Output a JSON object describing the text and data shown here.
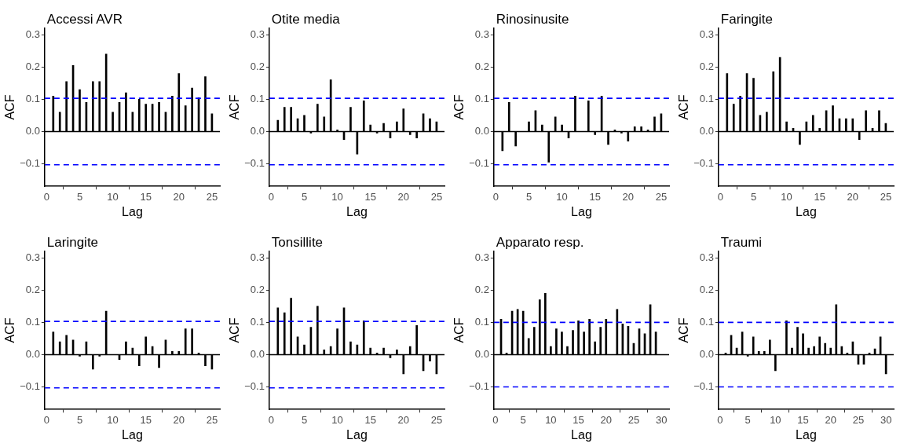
{
  "chart_data": [
    {
      "type": "bar",
      "title": "Accessi AVR",
      "xlabel": "Lag",
      "ylabel": "ACF",
      "color": "#000000",
      "x": [
        1,
        2,
        3,
        4,
        5,
        6,
        7,
        8,
        9,
        10,
        11,
        12,
        13,
        14,
        15,
        16,
        17,
        18,
        19,
        20,
        21,
        22,
        23,
        24,
        25
      ],
      "values": [
        0.11,
        0.06,
        0.155,
        0.205,
        0.13,
        0.09,
        0.155,
        0.155,
        0.24,
        0.06,
        0.09,
        0.12,
        0.06,
        0.1,
        0.085,
        0.085,
        0.09,
        0.06,
        0.11,
        0.18,
        0.08,
        0.135,
        0.105,
        0.17,
        0.055
      ],
      "xlim": [
        -0.3,
        26.2
      ],
      "xticks": [
        0,
        5,
        10,
        15,
        20,
        25
      ],
      "ylim": [
        -0.17,
        0.32
      ],
      "yticks": [
        {
          "value": -0.1,
          "label": "−0.1"
        },
        {
          "value": 0,
          "label": "0.0"
        },
        {
          "value": 0.1,
          "label": "0.1"
        },
        {
          "value": 0.2,
          "label": "0.2"
        },
        {
          "value": 0.3,
          "label": "0.3"
        }
      ],
      "ref_lines": [
        {
          "axis": "y",
          "value": 0,
          "color": "#000000",
          "line_style": "solid"
        },
        {
          "axis": "y",
          "value": 0.103,
          "color": "#0000ff",
          "line_style": "dashed"
        },
        {
          "axis": "y",
          "value": -0.103,
          "color": "#0000ff",
          "line_style": "dashed"
        }
      ]
    },
    {
      "type": "bar",
      "title": "Otite media",
      "xlabel": "Lag",
      "ylabel": "ACF",
      "color": "#000000",
      "x": [
        1,
        2,
        3,
        4,
        5,
        6,
        7,
        8,
        9,
        10,
        11,
        12,
        13,
        14,
        15,
        16,
        17,
        18,
        19,
        20,
        21,
        22,
        23,
        24,
        25
      ],
      "values": [
        0.035,
        0.075,
        0.075,
        0.04,
        0.05,
        -0.005,
        0.085,
        0.045,
        0.16,
        0.005,
        -0.025,
        0.075,
        -0.07,
        0.095,
        0.02,
        -0.005,
        0.025,
        -0.02,
        0.03,
        0.07,
        -0.01,
        -0.02,
        0.055,
        0.04,
        0.03
      ],
      "xlim": [
        -0.3,
        26.2
      ],
      "xticks": [
        0,
        5,
        10,
        15,
        20,
        25
      ],
      "ylim": [
        -0.17,
        0.32
      ],
      "yticks": [
        {
          "value": -0.1,
          "label": "−0.1"
        },
        {
          "value": 0,
          "label": "0.0"
        },
        {
          "value": 0.1,
          "label": "0.1"
        },
        {
          "value": 0.2,
          "label": "0.2"
        },
        {
          "value": 0.3,
          "label": "0.3"
        }
      ],
      "ref_lines": [
        {
          "axis": "y",
          "value": 0,
          "color": "#000000",
          "line_style": "solid"
        },
        {
          "axis": "y",
          "value": 0.103,
          "color": "#0000ff",
          "line_style": "dashed"
        },
        {
          "axis": "y",
          "value": -0.103,
          "color": "#0000ff",
          "line_style": "dashed"
        }
      ]
    },
    {
      "type": "bar",
      "title": "Rinosinusite",
      "xlabel": "Lag",
      "ylabel": "ACF",
      "color": "#000000",
      "x": [
        1,
        2,
        3,
        4,
        5,
        6,
        7,
        8,
        9,
        10,
        11,
        12,
        13,
        14,
        15,
        16,
        17,
        18,
        19,
        20,
        21,
        22,
        23,
        24,
        25
      ],
      "values": [
        -0.06,
        0.09,
        -0.045,
        0,
        0.03,
        0.065,
        0.02,
        -0.095,
        0.045,
        0.02,
        -0.02,
        0.11,
        0,
        0.095,
        -0.01,
        0.11,
        -0.04,
        0.005,
        -0.005,
        -0.03,
        0.015,
        0.015,
        0.005,
        0.045,
        0.055
      ],
      "xlim": [
        -0.3,
        26.2
      ],
      "xticks": [
        0,
        5,
        10,
        15,
        20,
        25
      ],
      "ylim": [
        -0.17,
        0.32
      ],
      "yticks": [
        {
          "value": -0.1,
          "label": "−0.1"
        },
        {
          "value": 0,
          "label": "0.0"
        },
        {
          "value": 0.1,
          "label": "0.1"
        },
        {
          "value": 0.2,
          "label": "0.2"
        },
        {
          "value": 0.3,
          "label": "0.3"
        }
      ],
      "ref_lines": [
        {
          "axis": "y",
          "value": 0,
          "color": "#000000",
          "line_style": "solid"
        },
        {
          "axis": "y",
          "value": 0.103,
          "color": "#0000ff",
          "line_style": "dashed"
        },
        {
          "axis": "y",
          "value": -0.103,
          "color": "#0000ff",
          "line_style": "dashed"
        }
      ]
    },
    {
      "type": "bar",
      "title": "Faringite",
      "xlabel": "Lag",
      "ylabel": "ACF",
      "color": "#000000",
      "x": [
        1,
        2,
        3,
        4,
        5,
        6,
        7,
        8,
        9,
        10,
        11,
        12,
        13,
        14,
        15,
        16,
        17,
        18,
        19,
        20,
        21,
        22,
        23,
        24,
        25
      ],
      "values": [
        0.18,
        0.085,
        0.11,
        0.18,
        0.165,
        0.05,
        0.06,
        0.185,
        0.23,
        0.03,
        0.01,
        -0.04,
        0.03,
        0.05,
        0.01,
        0.065,
        0.08,
        0.04,
        0.04,
        0.04,
        -0.025,
        0.065,
        0.01,
        0.065,
        0.025
      ],
      "xlim": [
        -0.3,
        26.2
      ],
      "xticks": [
        0,
        5,
        10,
        15,
        20,
        25
      ],
      "ylim": [
        -0.17,
        0.32
      ],
      "yticks": [
        {
          "value": -0.1,
          "label": "−0.1"
        },
        {
          "value": 0,
          "label": "0.0"
        },
        {
          "value": 0.1,
          "label": "0.1"
        },
        {
          "value": 0.2,
          "label": "0.2"
        },
        {
          "value": 0.3,
          "label": "0.3"
        }
      ],
      "ref_lines": [
        {
          "axis": "y",
          "value": 0,
          "color": "#000000",
          "line_style": "solid"
        },
        {
          "axis": "y",
          "value": 0.103,
          "color": "#0000ff",
          "line_style": "dashed"
        },
        {
          "axis": "y",
          "value": -0.103,
          "color": "#0000ff",
          "line_style": "dashed"
        }
      ]
    },
    {
      "type": "bar",
      "title": "Laringite",
      "xlabel": "Lag",
      "ylabel": "ACF",
      "color": "#000000",
      "x": [
        1,
        2,
        3,
        4,
        5,
        6,
        7,
        8,
        9,
        10,
        11,
        12,
        13,
        14,
        15,
        16,
        17,
        18,
        19,
        20,
        21,
        22,
        23,
        24,
        25
      ],
      "values": [
        0.07,
        0.04,
        0.06,
        0.045,
        -0.005,
        0.04,
        -0.045,
        -0.005,
        0.135,
        0,
        -0.015,
        0.04,
        0.02,
        -0.035,
        0.055,
        0.025,
        -0.04,
        0.045,
        0.01,
        0.01,
        0.08,
        0.08,
        0.005,
        -0.035,
        -0.045
      ],
      "xlim": [
        -0.3,
        26.2
      ],
      "xticks": [
        0,
        5,
        10,
        15,
        20,
        25
      ],
      "ylim": [
        -0.17,
        0.32
      ],
      "yticks": [
        {
          "value": -0.1,
          "label": "−0.1"
        },
        {
          "value": 0,
          "label": "0.0"
        },
        {
          "value": 0.1,
          "label": "0.1"
        },
        {
          "value": 0.2,
          "label": "0.2"
        },
        {
          "value": 0.3,
          "label": "0.3"
        }
      ],
      "ref_lines": [
        {
          "axis": "y",
          "value": 0,
          "color": "#000000",
          "line_style": "solid"
        },
        {
          "axis": "y",
          "value": 0.103,
          "color": "#0000ff",
          "line_style": "dashed"
        },
        {
          "axis": "y",
          "value": -0.103,
          "color": "#0000ff",
          "line_style": "dashed"
        }
      ]
    },
    {
      "type": "bar",
      "title": "Tonsillite",
      "xlabel": "Lag",
      "ylabel": "ACF",
      "color": "#000000",
      "x": [
        1,
        2,
        3,
        4,
        5,
        6,
        7,
        8,
        9,
        10,
        11,
        12,
        13,
        14,
        15,
        16,
        17,
        18,
        19,
        20,
        21,
        22,
        23,
        24,
        25
      ],
      "values": [
        0.145,
        0.13,
        0.175,
        0.055,
        0.03,
        0.085,
        0.15,
        0.015,
        0.025,
        0.08,
        0.145,
        0.04,
        0.03,
        0.105,
        0.02,
        0.005,
        0.02,
        -0.01,
        0.015,
        -0.06,
        0.025,
        0.09,
        -0.05,
        -0.02,
        -0.06
      ],
      "xlim": [
        -0.3,
        26.2
      ],
      "xticks": [
        0,
        5,
        10,
        15,
        20,
        25
      ],
      "ylim": [
        -0.17,
        0.32
      ],
      "yticks": [
        {
          "value": -0.1,
          "label": "−0.1"
        },
        {
          "value": 0,
          "label": "0.0"
        },
        {
          "value": 0.1,
          "label": "0.1"
        },
        {
          "value": 0.2,
          "label": "0.2"
        },
        {
          "value": 0.3,
          "label": "0.3"
        }
      ],
      "ref_lines": [
        {
          "axis": "y",
          "value": 0,
          "color": "#000000",
          "line_style": "solid"
        },
        {
          "axis": "y",
          "value": 0.103,
          "color": "#0000ff",
          "line_style": "dashed"
        },
        {
          "axis": "y",
          "value": -0.103,
          "color": "#0000ff",
          "line_style": "dashed"
        }
      ]
    },
    {
      "type": "bar",
      "title": "Apparato resp.",
      "xlabel": "Lag",
      "ylabel": "ACF",
      "color": "#000000",
      "x": [
        1,
        2,
        3,
        4,
        5,
        6,
        7,
        8,
        9,
        10,
        11,
        12,
        13,
        14,
        15,
        16,
        17,
        18,
        19,
        20,
        21,
        22,
        23,
        24,
        25,
        26,
        27,
        28,
        29,
        30
      ],
      "values": [
        0.11,
        0.005,
        0.135,
        0.14,
        0.135,
        0.05,
        0.085,
        0.17,
        0.19,
        0.025,
        0.08,
        0.07,
        0.025,
        0.075,
        0.105,
        0.07,
        0.11,
        0.04,
        0.085,
        0.11,
        0,
        0.14,
        0.095,
        0.088,
        0.035,
        0.08,
        0.065,
        0.155,
        0.07,
        0
      ],
      "xlim": [
        -0.3,
        31.4
      ],
      "xticks": [
        0,
        5,
        10,
        15,
        20,
        25,
        30
      ],
      "ylim": [
        -0.17,
        0.32
      ],
      "yticks": [
        {
          "value": -0.1,
          "label": "−0.1"
        },
        {
          "value": 0,
          "label": "0.0"
        },
        {
          "value": 0.1,
          "label": "0.1"
        },
        {
          "value": 0.2,
          "label": "0.2"
        },
        {
          "value": 0.3,
          "label": "0.3"
        }
      ],
      "ref_lines": [
        {
          "axis": "y",
          "value": 0,
          "color": "#000000",
          "line_style": "solid"
        },
        {
          "axis": "y",
          "value": 0.1,
          "color": "#0000ff",
          "line_style": "dashed"
        },
        {
          "axis": "y",
          "value": -0.1,
          "color": "#0000ff",
          "line_style": "dashed"
        }
      ]
    },
    {
      "type": "bar",
      "title": "Traumi",
      "xlabel": "Lag",
      "ylabel": "ACF",
      "color": "#000000",
      "x": [
        1,
        2,
        3,
        4,
        5,
        6,
        7,
        8,
        9,
        10,
        11,
        12,
        13,
        14,
        15,
        16,
        17,
        18,
        19,
        20,
        21,
        22,
        23,
        24,
        25,
        26,
        27,
        28,
        29,
        30
      ],
      "values": [
        0.005,
        0.06,
        0.02,
        0.07,
        -0.005,
        0.055,
        0.01,
        0.01,
        0.045,
        -0.05,
        0,
        0.105,
        0.02,
        0.085,
        0.065,
        0.02,
        0.025,
        0.055,
        0.035,
        0.02,
        0.155,
        0.025,
        0.005,
        0.04,
        -0.03,
        -0.03,
        0.005,
        0.018,
        0.055,
        -0.06
      ],
      "xlim": [
        -0.3,
        31.4
      ],
      "xticks": [
        0,
        5,
        10,
        15,
        20,
        25,
        30
      ],
      "ylim": [
        -0.17,
        0.32
      ],
      "yticks": [
        {
          "value": -0.1,
          "label": "−0.1"
        },
        {
          "value": 0,
          "label": "0.0"
        },
        {
          "value": 0.1,
          "label": "0.1"
        },
        {
          "value": 0.2,
          "label": "0.2"
        },
        {
          "value": 0.3,
          "label": "0.3"
        }
      ],
      "ref_lines": [
        {
          "axis": "y",
          "value": 0,
          "color": "#000000",
          "line_style": "solid"
        },
        {
          "axis": "y",
          "value": 0.1,
          "color": "#0000ff",
          "line_style": "dashed"
        },
        {
          "axis": "y",
          "value": -0.1,
          "color": "#0000ff",
          "line_style": "dashed"
        }
      ]
    }
  ]
}
